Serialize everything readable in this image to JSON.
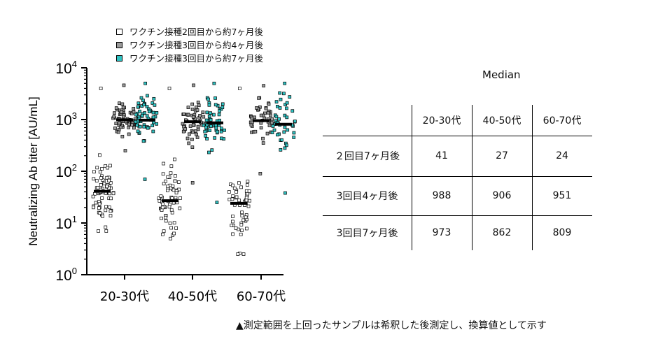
{
  "legend": {
    "items": [
      {
        "label": "ワクチン接種2回目から約7ヶ月後",
        "color": "#ffffff"
      },
      {
        "label": "ワクチン接種3回目から約4ヶ月後",
        "color": "#9a9a9a"
      },
      {
        "label": "ワクチン接種3回目から約7ヶ月後",
        "color": "#2fc3c3"
      }
    ]
  },
  "chart_data": {
    "type": "scatter",
    "ylabel": "Neutralizing Ab titer [AU/mL]",
    "yscale": "log",
    "ylim": [
      1,
      10000
    ],
    "ytick_labels": [
      {
        "base": "10",
        "exp": "0"
      },
      {
        "base": "10",
        "exp": "1"
      },
      {
        "base": "10",
        "exp": "2"
      },
      {
        "base": "10",
        "exp": "3"
      },
      {
        "base": "10",
        "exp": "4"
      }
    ],
    "categories": [
      "20-30代",
      "40-50代",
      "60-70代"
    ],
    "series": [
      {
        "name": "ワクチン接種2回目から約7ヶ月後",
        "color": "#ffffff",
        "medians": [
          41,
          27,
          24
        ],
        "ranges": [
          [
            7,
            4000
          ],
          [
            5,
            4000
          ],
          [
            2.5,
            4000
          ]
        ]
      },
      {
        "name": "ワクチン接種3回目から約4ヶ月後",
        "color": "#9a9a9a",
        "medians": [
          988,
          906,
          951
        ],
        "ranges": [
          [
            250,
            4600
          ],
          [
            60,
            4600
          ],
          [
            90,
            4500
          ]
        ]
      },
      {
        "name": "ワクチン接種3回目から約7ヶ月後",
        "color": "#2fc3c3",
        "medians": [
          973,
          862,
          809
        ],
        "ranges": [
          [
            70,
            5000
          ],
          [
            25,
            5000
          ],
          [
            38,
            5000
          ]
        ]
      }
    ]
  },
  "table": {
    "title": "Median",
    "columns": [
      "20-30代",
      "40-50代",
      "60-70代"
    ],
    "rows": [
      {
        "label": "２回目7ヶ月後",
        "values": [
          "41",
          "27",
          "24"
        ]
      },
      {
        "label": "3回目4ヶ月後",
        "values": [
          "988",
          "906",
          "951"
        ]
      },
      {
        "label": "3回目7ヶ月後",
        "values": [
          "973",
          "862",
          "809"
        ]
      }
    ]
  },
  "footnote": "▲測定範囲を上回ったサンプルは希釈した後測定し、換算値として示す"
}
